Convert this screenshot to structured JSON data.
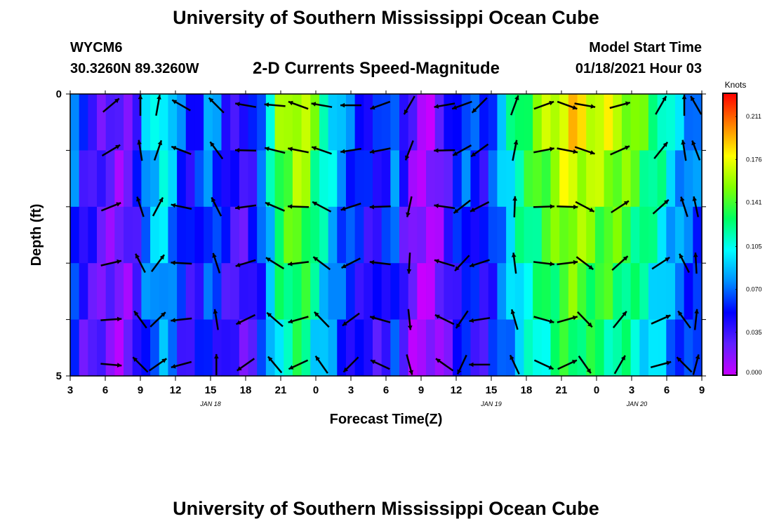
{
  "header": {
    "title": "University of Southern Mississippi Ocean Cube",
    "station": "WYCM6",
    "location": "30.3260N 89.3260W",
    "subtitle": "2-D Currents Speed-Magnitude",
    "model_start_label": "Model Start Time",
    "model_start_value": "01/18/2021 Hour 03"
  },
  "footer": {
    "title": "University of Southern Mississippi Ocean Cube"
  },
  "chart_data": {
    "type": "heatmap",
    "title": "2-D Currents Speed-Magnitude",
    "xlabel": "Forecast Time(Z)",
    "ylabel": "Depth (ft)",
    "x_tick_labels": [
      "3",
      "6",
      "9",
      "12",
      "15",
      "18",
      "21",
      "0",
      "3",
      "6",
      "9",
      "12",
      "15",
      "18",
      "21",
      "0",
      "3",
      "6",
      "9"
    ],
    "date_labels": [
      "JAN 18",
      "JAN 19",
      "JAN 20"
    ],
    "y_tick_labels": [
      "0",
      "5"
    ],
    "y_range": [
      0,
      5
    ],
    "colorbar": {
      "unit": "Knots",
      "range": [
        0.0,
        0.23
      ],
      "tick_labels": [
        "0.211",
        "0.176",
        "0.141",
        "0.105",
        "0.070",
        "0.035",
        "0.000"
      ],
      "tick_values": [
        0.211,
        0.176,
        0.141,
        0.105,
        0.07,
        0.035,
        0.0
      ],
      "colors": [
        "#c800ff",
        "#6020ff",
        "#0000ff",
        "#0090ff",
        "#00ffff",
        "#00ff60",
        "#80ff00",
        "#ffff00",
        "#ff8000",
        "#ff0000"
      ]
    },
    "speed_profile": [
      0.075,
      0.045,
      0.04,
      0.03,
      0.025,
      0.02,
      0.025,
      0.045,
      0.085,
      0.1,
      0.11,
      0.09,
      0.065,
      0.05,
      0.06,
      0.08,
      0.07,
      0.05,
      0.04,
      0.035,
      0.05,
      0.075,
      0.11,
      0.15,
      0.16,
      0.17,
      0.165,
      0.14,
      0.12,
      0.1,
      0.08,
      0.07,
      0.06,
      0.05,
      0.05,
      0.06,
      0.08,
      0.04,
      0.02,
      0.01,
      0.01,
      0.02,
      0.04,
      0.06,
      0.07,
      0.06,
      0.05,
      0.07,
      0.09,
      0.11,
      0.13,
      0.14,
      0.15,
      0.16,
      0.17,
      0.18,
      0.185,
      0.18,
      0.175,
      0.17,
      0.17,
      0.165,
      0.16,
      0.15,
      0.14,
      0.13,
      0.12,
      0.1,
      0.09,
      0.08,
      0.075
    ],
    "arrow_times": [
      3.5,
      6,
      7.5,
      9.5,
      12.5,
      15,
      17.5,
      19.5,
      21.5,
      24,
      26.5,
      29,
      32,
      33.5,
      35,
      38,
      40.5,
      42.5,
      44,
      47,
      50.5,
      52.5,
      53.5
    ],
    "arrow_dirs_deg": [
      40,
      90,
      80,
      150,
      135,
      170,
      175,
      160,
      170,
      180,
      200,
      240,
      190,
      200,
      225,
      70,
      20,
      340,
      350,
      15,
      60,
      90,
      120
    ]
  }
}
